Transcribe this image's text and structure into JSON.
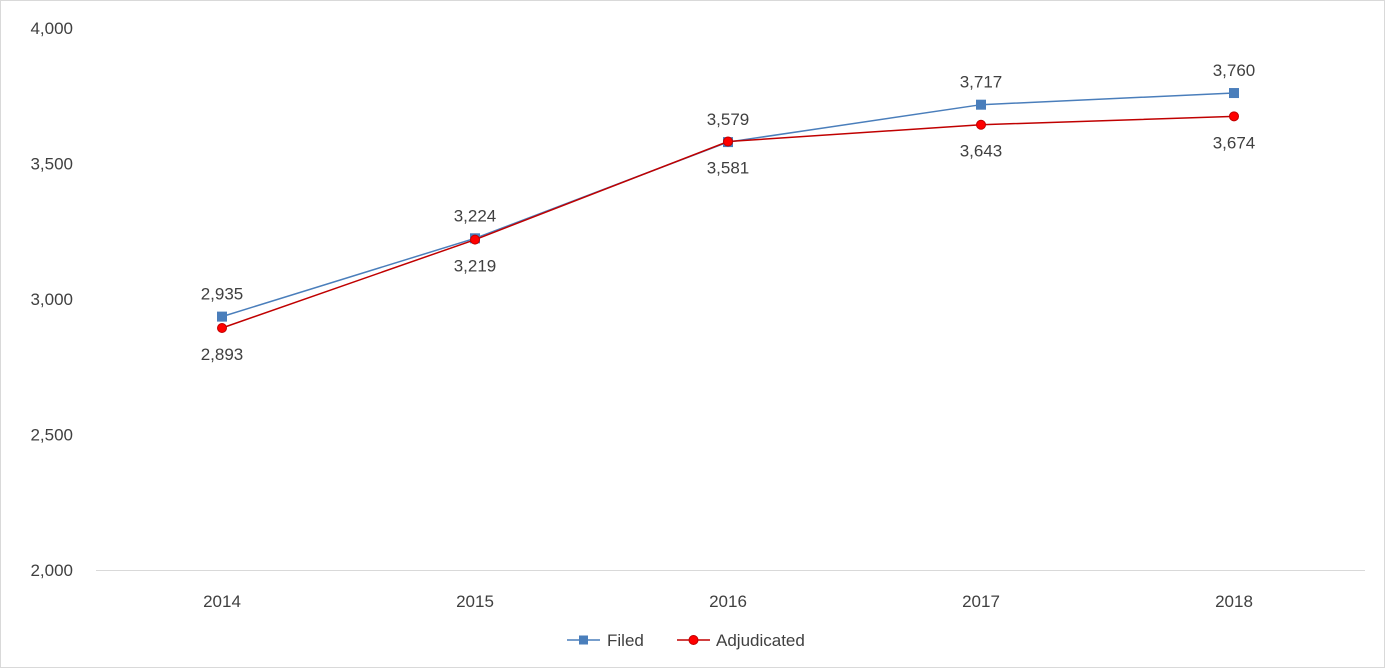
{
  "chart_data": {
    "type": "line",
    "categories": [
      "2014",
      "2015",
      "2016",
      "2017",
      "2018"
    ],
    "series": [
      {
        "name": "Filed",
        "values": [
          2935,
          3224,
          3579,
          3717,
          3760
        ],
        "labels": [
          "2,935",
          "3,224",
          "3,579",
          "3,717",
          "3,760"
        ],
        "color": "#4a7ebb",
        "marker": "square",
        "label_position": "above"
      },
      {
        "name": "Adjudicated",
        "values": [
          2893,
          3219,
          3581,
          3643,
          3674
        ],
        "labels": [
          "2,893",
          "3,219",
          "3,581",
          "3,643",
          "3,674"
        ],
        "color": "#c00000",
        "marker_fill": "#ff0000",
        "marker": "circle",
        "label_position": "below"
      }
    ],
    "ylim": [
      2000,
      4000
    ],
    "yticks": [
      2000,
      2500,
      3000,
      3500,
      4000
    ],
    "ytick_labels": [
      "2,000",
      "2,500",
      "3,000",
      "3,500",
      "4,000"
    ],
    "grid": false,
    "legend_position": "bottom"
  }
}
